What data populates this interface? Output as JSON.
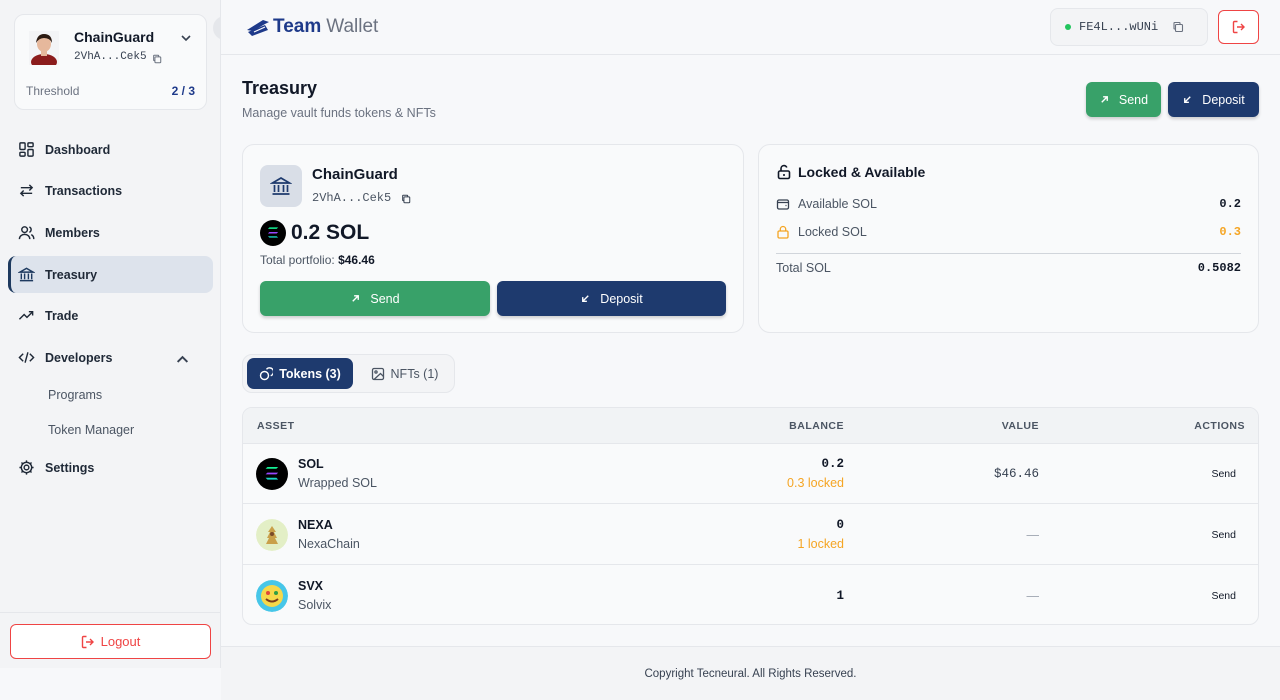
{
  "sidebar": {
    "vault": {
      "name": "ChainGuard",
      "address": "2VhA...Cek5",
      "threshold_label": "Threshold",
      "threshold_value": "2 / 3"
    },
    "nav": [
      {
        "label": "Dashboard",
        "icon": "grid-icon"
      },
      {
        "label": "Transactions",
        "icon": "arrows-swap-icon"
      },
      {
        "label": "Members",
        "icon": "users-icon"
      },
      {
        "label": "Treasury",
        "icon": "bank-icon",
        "active": true
      },
      {
        "label": "Trade",
        "icon": "trending-up-icon"
      },
      {
        "label": "Developers",
        "icon": "code-icon",
        "expanded": true
      },
      {
        "label": "Settings",
        "icon": "gear-icon"
      }
    ],
    "developers_sub": [
      "Programs",
      "Token Manager"
    ],
    "logout_label": "Logout"
  },
  "header": {
    "logo_team": "Team",
    "logo_wallet": "Wallet",
    "wallet_address": "FE4L...wUNi"
  },
  "page": {
    "title": "Treasury",
    "subtitle": "Manage vault funds tokens & NFTs",
    "send_label": "Send",
    "deposit_label": "Deposit"
  },
  "vault_card": {
    "name": "ChainGuard",
    "address": "2VhA...Cek5",
    "balance": "0.2 SOL",
    "portfolio_label": "Total portfolio:",
    "portfolio_value": "$46.46",
    "send_label": "Send",
    "deposit_label": "Deposit"
  },
  "locked_available": {
    "title": "Locked & Available",
    "available_label": "Available SOL",
    "available_value": "0.2",
    "locked_label": "Locked SOL",
    "locked_value": "0.3",
    "total_label": "Total SOL",
    "total_value": "0.5082"
  },
  "tabs": [
    {
      "label": "Tokens (3)",
      "active": true
    },
    {
      "label": "NFTs (1)",
      "active": false
    }
  ],
  "table": {
    "headers": [
      "ASSET",
      "BALANCE",
      "VALUE",
      "ACTIONS"
    ],
    "rows": [
      {
        "symbol": "SOL",
        "name": "Wrapped SOL",
        "balance": "0.2",
        "locked": "0.3 locked",
        "value": "$46.46",
        "action": "Send"
      },
      {
        "symbol": "NEXA",
        "name": "NexaChain",
        "balance": "0",
        "locked": "1 locked",
        "value": "—",
        "action": "Send"
      },
      {
        "symbol": "SVX",
        "name": "Solvix",
        "balance": "1",
        "locked": "",
        "value": "—",
        "action": "Send"
      }
    ]
  },
  "footer": {
    "text": "Copyright Tecneural. All Rights Reserved."
  },
  "colors": {
    "accent_navy": "#1e3a6e",
    "send_green": "#38a169",
    "locked_orange": "#f5a524",
    "danger_red": "#ef4444"
  }
}
